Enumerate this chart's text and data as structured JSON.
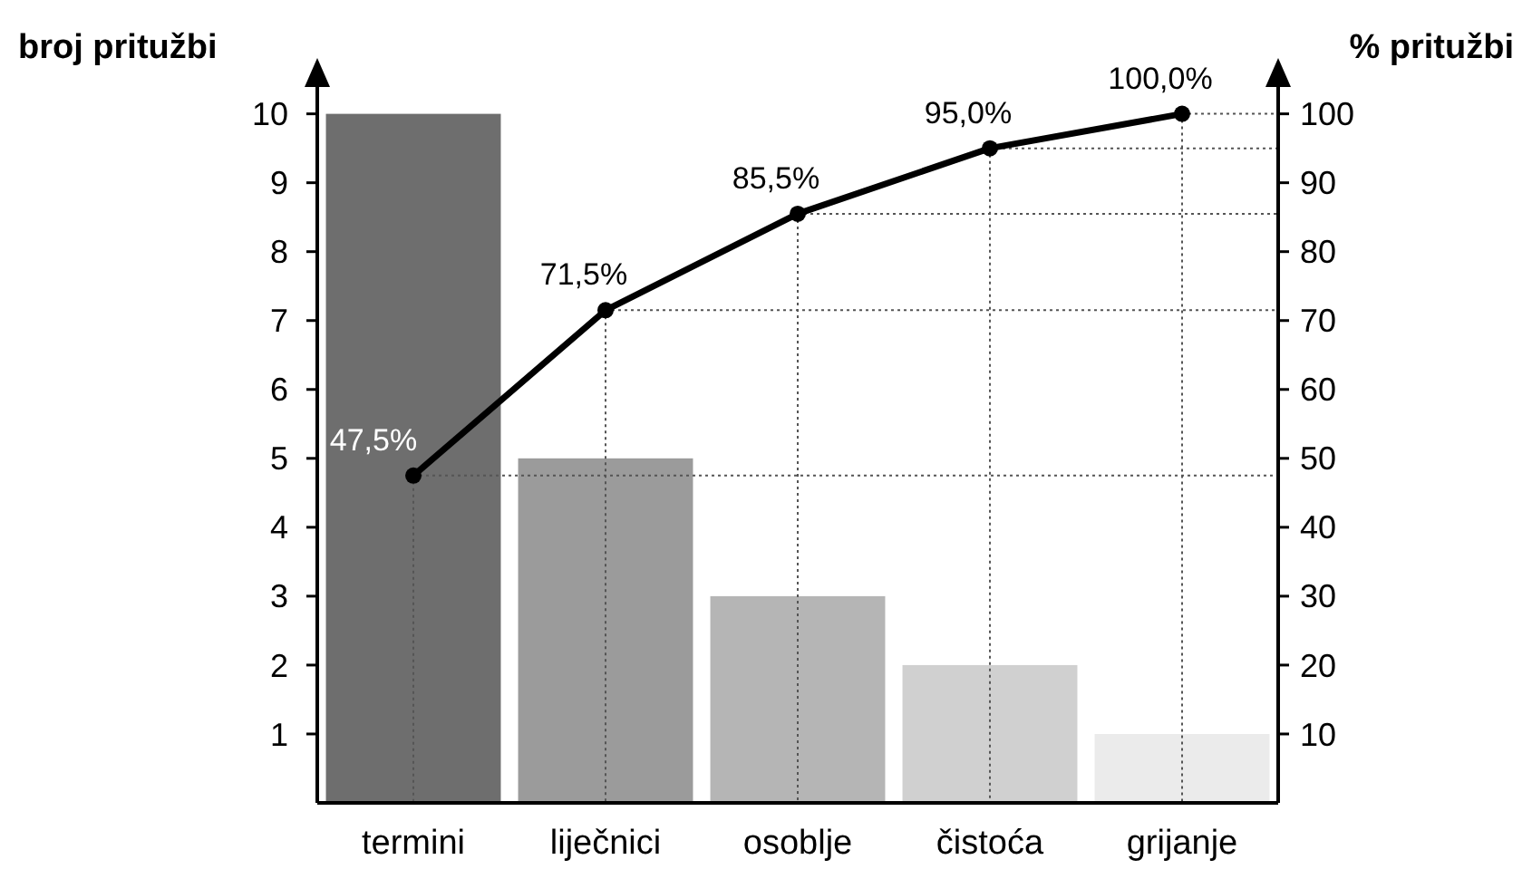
{
  "chart_data": {
    "type": "bar",
    "ylabel": "broj pritužbi",
    "y2label": "% pritužbi",
    "categories": [
      "termini",
      "liječnici",
      "osoblje",
      "čistoća",
      "grijanje"
    ],
    "series": [
      {
        "values": [
          10,
          5,
          3,
          2,
          1
        ],
        "colors": [
          "#6e6e6e",
          "#9b9b9b",
          "#b5b5b5",
          "#d0d0d0",
          "#ebebeb"
        ]
      },
      {
        "type": "line",
        "axis": "y2",
        "color": "#000000",
        "values": [
          47.5,
          71.5,
          85.5,
          95,
          100
        ],
        "value_labels": [
          "47,5%",
          "71,5%",
          "85,5%",
          "95,0%",
          "100,0%"
        ],
        "marker": "circle",
        "line_style": "solid"
      }
    ],
    "ylim": [
      0,
      10.6
    ],
    "yticks": [
      1,
      2,
      3,
      4,
      5,
      6,
      7,
      8,
      9,
      10
    ],
    "y2lim": [
      0,
      106
    ],
    "y2ticks": [
      10,
      20,
      30,
      40,
      50,
      60,
      70,
      80,
      90,
      100
    ],
    "ref_lines": [
      {
        "axis": "y2",
        "value": 47.5,
        "color": "#555555",
        "line_style": "dotted"
      },
      {
        "axis": "y2",
        "value": 71.5,
        "color": "#555555",
        "line_style": "dotted"
      },
      {
        "axis": "y2",
        "value": 85.5,
        "color": "#555555",
        "line_style": "dotted"
      },
      {
        "axis": "y2",
        "value": 95,
        "color": "#555555",
        "line_style": "dotted"
      },
      {
        "axis": "y2",
        "value": 100,
        "color": "#555555",
        "line_style": "dotted"
      },
      {
        "axis": "x",
        "value": "termini",
        "color": "#555555",
        "line_style": "dotted"
      },
      {
        "axis": "x",
        "value": "liječnici",
        "color": "#555555",
        "line_style": "dotted"
      },
      {
        "axis": "x",
        "value": "osoblje",
        "color": "#555555",
        "line_style": "dotted"
      },
      {
        "axis": "x",
        "value": "čistoća",
        "color": "#555555",
        "line_style": "dotted"
      },
      {
        "axis": "x",
        "value": "grijanje",
        "color": "#555555",
        "line_style": "dotted"
      }
    ],
    "grid": false
  }
}
